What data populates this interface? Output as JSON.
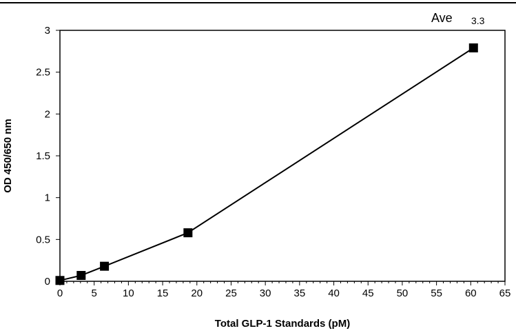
{
  "chart_data": {
    "type": "scatter",
    "title": "",
    "xlabel": "Total GLP-1 Standards (pM)",
    "ylabel": "OD 450/650 nm",
    "xlim": [
      0,
      65
    ],
    "ylim": [
      0,
      3
    ],
    "xticks": [
      0,
      5,
      10,
      15,
      20,
      25,
      30,
      35,
      40,
      45,
      50,
      55,
      60,
      65
    ],
    "yticks": [
      0,
      0.5,
      1,
      1.5,
      2,
      2.5,
      3
    ],
    "yticklabels": [
      "0",
      "0.5",
      "1",
      "1.5",
      "2",
      "2.5",
      "3"
    ],
    "grid": false,
    "legend": "none",
    "marker": "square",
    "connected": true,
    "series": [
      {
        "x": [
          0,
          3.1,
          6.5,
          18.7,
          60.4
        ],
        "y": [
          0.01,
          0.07,
          0.18,
          0.58,
          2.79
        ]
      }
    ],
    "annotation": {
      "label": "Ave",
      "value": "3.3"
    },
    "colors": {
      "line": "#000000",
      "marker": "#000000"
    }
  }
}
